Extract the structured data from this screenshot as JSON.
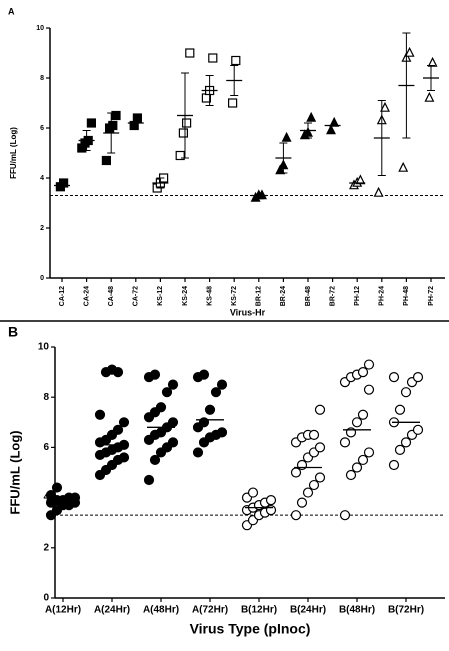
{
  "chart_data": [
    {
      "type": "dot",
      "label": "A",
      "y_label": "FFU/mL (Log)",
      "x_label": "Virus-Hr",
      "ylim": [
        0,
        10
      ],
      "yticks": [
        0,
        2,
        4,
        6,
        8,
        10
      ],
      "reference_line": 3.3,
      "groups": [
        {
          "name": "CA-12",
          "marker": "square-filled",
          "values": [
            3.65,
            3.8
          ],
          "mean": 3.7
        },
        {
          "name": "CA-24",
          "marker": "square-filled",
          "values": [
            5.2,
            5.4,
            5.5,
            6.2
          ],
          "mean": 5.5,
          "sd": 0.4
        },
        {
          "name": "CA-48",
          "marker": "square-filled",
          "values": [
            4.7,
            6.0,
            6.1,
            6.5
          ],
          "mean": 5.8,
          "sd": 0.8
        },
        {
          "name": "CA-72",
          "marker": "square-filled",
          "values": [
            6.1,
            6.4
          ],
          "mean": 6.2
        },
        {
          "name": "KS-12",
          "marker": "square-open",
          "values": [
            3.6,
            3.8,
            4.0
          ],
          "mean": 3.8,
          "sd": 0.2
        },
        {
          "name": "KS-24",
          "marker": "square-open",
          "values": [
            4.9,
            5.8,
            6.2,
            9.0
          ],
          "mean": 6.5,
          "sd": 1.7
        },
        {
          "name": "KS-48",
          "marker": "square-open",
          "values": [
            7.2,
            7.5,
            8.8
          ],
          "mean": 7.5,
          "sd": 0.6
        },
        {
          "name": "KS-72",
          "marker": "square-open",
          "values": [
            7.0,
            8.7
          ],
          "mean": 7.9,
          "sd": 0.6
        },
        {
          "name": "BR-12",
          "marker": "triangle-filled",
          "values": [
            3.2,
            3.3,
            3.3
          ],
          "mean": 3.3
        },
        {
          "name": "BR-24",
          "marker": "triangle-filled",
          "values": [
            4.3,
            4.5,
            5.6
          ],
          "mean": 4.8,
          "sd": 0.6
        },
        {
          "name": "BR-48",
          "marker": "triangle-filled",
          "values": [
            5.7,
            5.8,
            6.4
          ],
          "mean": 5.9,
          "sd": 0.3
        },
        {
          "name": "BR-72",
          "marker": "triangle-filled",
          "values": [
            5.9,
            6.2
          ],
          "mean": 6.1
        },
        {
          "name": "PH-12",
          "marker": "triangle-open",
          "values": [
            3.7,
            3.8,
            3.9
          ],
          "mean": 3.8
        },
        {
          "name": "PH-24",
          "marker": "triangle-open",
          "values": [
            3.4,
            6.3,
            6.8
          ],
          "mean": 5.6,
          "sd": 1.5
        },
        {
          "name": "PH-48",
          "marker": "triangle-open",
          "values": [
            4.4,
            8.8,
            9.0
          ],
          "mean": 7.7,
          "sd": 2.1
        },
        {
          "name": "PH-72",
          "marker": "triangle-open",
          "values": [
            7.2,
            8.6
          ],
          "mean": 8.0,
          "sd": 0.5
        }
      ]
    },
    {
      "type": "dot",
      "label": "B",
      "y_label": "FFU/mL (Log)",
      "x_label": "Virus Type (pInoc)",
      "ylim": [
        0,
        10
      ],
      "yticks": [
        0,
        2,
        4,
        6,
        8,
        10
      ],
      "reference_line": 3.3,
      "groups": [
        {
          "name": "A(12Hr)",
          "marker": "circle-filled",
          "values": [
            3.3,
            3.5,
            3.7,
            3.7,
            3.8,
            3.8,
            3.9,
            3.9,
            4.0,
            4.0,
            4.1,
            4.4
          ],
          "mean": 3.8
        },
        {
          "name": "A(24Hr)",
          "marker": "circle-filled",
          "values": [
            4.9,
            5.1,
            5.3,
            5.5,
            5.6,
            5.7,
            5.8,
            5.9,
            6.0,
            6.1,
            6.2,
            6.3,
            6.5,
            6.7,
            7.0,
            7.3,
            9.0,
            9.1,
            9.0
          ],
          "mean": 6.1
        },
        {
          "name": "A(48Hr)",
          "marker": "circle-filled",
          "values": [
            4.7,
            5.5,
            5.8,
            6.0,
            6.2,
            6.3,
            6.5,
            6.6,
            6.8,
            7.0,
            7.2,
            7.4,
            7.6,
            8.2,
            8.5,
            8.8,
            8.9
          ],
          "mean": 6.8
        },
        {
          "name": "A(72Hr)",
          "marker": "circle-filled",
          "values": [
            5.8,
            6.2,
            6.4,
            6.5,
            6.6,
            6.8,
            7.0,
            7.5,
            8.2,
            8.5,
            8.8,
            8.9
          ],
          "mean": 7.1
        },
        {
          "name": "B(12Hr)",
          "marker": "circle-open",
          "values": [
            2.9,
            3.1,
            3.3,
            3.4,
            3.5,
            3.5,
            3.6,
            3.7,
            3.8,
            3.9,
            4.0,
            4.2
          ],
          "mean": 3.6
        },
        {
          "name": "B(24Hr)",
          "marker": "circle-open",
          "values": [
            3.3,
            3.8,
            4.2,
            4.5,
            4.8,
            5.0,
            5.3,
            5.6,
            5.8,
            6.0,
            6.2,
            6.4,
            6.5,
            6.5,
            7.5
          ],
          "mean": 5.2
        },
        {
          "name": "B(48Hr)",
          "marker": "circle-open",
          "values": [
            3.3,
            4.9,
            5.2,
            5.5,
            5.8,
            6.2,
            6.6,
            7.0,
            7.3,
            8.3,
            8.6,
            8.8,
            8.9,
            9.0,
            9.3
          ],
          "mean": 6.7
        },
        {
          "name": "B(72Hr)",
          "marker": "circle-open",
          "values": [
            5.3,
            5.9,
            6.2,
            6.5,
            6.7,
            7.0,
            7.5,
            8.2,
            8.6,
            8.8,
            8.8
          ],
          "mean": 7.0
        }
      ]
    }
  ]
}
